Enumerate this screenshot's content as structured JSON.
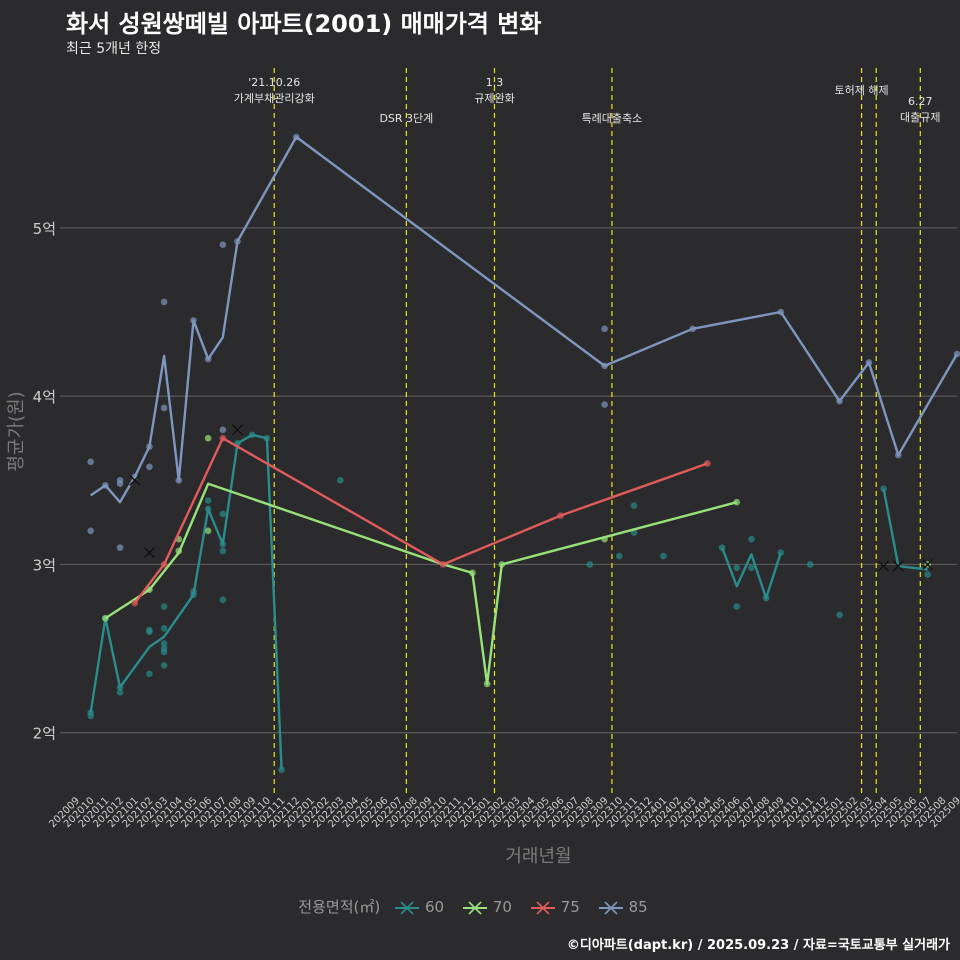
{
  "header": {
    "title": "화서 성원쌍떼빌 아파트(2001) 매매가격 변화",
    "subtitle": "최근 5개년 한정"
  },
  "caption": "©디아파트(dapt.kr) / 2025.09.23 / 자료=국토교통부 실거래가",
  "colors": {
    "background": "#2b2b2d",
    "grid": "#5a5a5a",
    "event_line": "#e8e81a",
    "s60": "#2a8c8c",
    "s70": "#99e27a",
    "s75": "#e05b5b",
    "s85": "#7f96be"
  },
  "chart_data": {
    "type": "line",
    "title": "화서 성원쌍떼빌 아파트(2001) 매매가격 변화",
    "xlabel": "거래년월",
    "ylabel": "평균가(원)",
    "ylim": [
      1.63,
      5.95
    ],
    "yticks": [
      {
        "value": 2,
        "label": "2억"
      },
      {
        "value": 3,
        "label": "3억"
      },
      {
        "value": 4,
        "label": "4억"
      },
      {
        "value": 5,
        "label": "5억"
      }
    ],
    "categories": [
      "202009",
      "202010",
      "202011",
      "202012",
      "202101",
      "202102",
      "202103",
      "202104",
      "202105",
      "202106",
      "202107",
      "202108",
      "202109",
      "202110",
      "202111",
      "202112",
      "202201",
      "202202",
      "202203",
      "202204",
      "202205",
      "202206",
      "202207",
      "202208",
      "202209",
      "202210",
      "202211",
      "202212",
      "202301",
      "202302",
      "202303",
      "202304",
      "202305",
      "202306",
      "202307",
      "202308",
      "202309",
      "202310",
      "202311",
      "202312",
      "202401",
      "202402",
      "202403",
      "202404",
      "202405",
      "202406",
      "202407",
      "202408",
      "202409",
      "202410",
      "202411",
      "202412",
      "202501",
      "202502",
      "202503",
      "202504",
      "202505",
      "202506",
      "202507",
      "202508",
      "202509"
    ],
    "legend_title": "전용면적(㎡)",
    "events": [
      {
        "idx": 13.5,
        "label": "'21.10.26\n가계부채관리강화",
        "row": 0
      },
      {
        "idx": 22.5,
        "label": "DSR 3단계",
        "row": 1
      },
      {
        "idx": 28.5,
        "label": "1.3\n규제완화",
        "row": 0
      },
      {
        "idx": 36.5,
        "label": "특례대출축소",
        "row": 1
      },
      {
        "idx": 53.5,
        "label": "토허제 해제",
        "row": 0
      },
      {
        "idx": 54.5,
        "label": "",
        "row": 0
      },
      {
        "idx": 57.5,
        "label": "6.27\n대출규제",
        "row": 2
      }
    ],
    "series": [
      {
        "name": "60",
        "color": "#2a8c8c",
        "line": [
          [
            1,
            2.12
          ],
          [
            2,
            2.68
          ],
          [
            3,
            2.27
          ],
          [
            5,
            2.51
          ],
          [
            6,
            2.57
          ],
          [
            8,
            2.82
          ],
          [
            9,
            3.33
          ],
          [
            10,
            3.12
          ],
          [
            11,
            3.72
          ],
          [
            12,
            3.77
          ],
          [
            13,
            3.75
          ],
          [
            14,
            1.78
          ],
          [
            null,
            null
          ],
          [
            55,
            3.45
          ],
          [
            56,
            2.99
          ],
          [
            58,
            2.97
          ],
          [
            null,
            null
          ],
          [
            44,
            3.1
          ],
          [
            45,
            2.87
          ],
          [
            46,
            3.06
          ],
          [
            47,
            2.8
          ],
          [
            48,
            3.07
          ]
        ],
        "points": [
          [
            1,
            2.1
          ],
          [
            1,
            2.12
          ],
          [
            2,
            2.68
          ],
          [
            3,
            2.24
          ],
          [
            3,
            2.27
          ],
          [
            5,
            2.35
          ],
          [
            5,
            2.6
          ],
          [
            5,
            2.61
          ],
          [
            6,
            2.48
          ],
          [
            6,
            2.5
          ],
          [
            6,
            2.53
          ],
          [
            6,
            2.4
          ],
          [
            6,
            2.62
          ],
          [
            6,
            2.75
          ],
          [
            8,
            2.82
          ],
          [
            8,
            2.84
          ],
          [
            9,
            3.38
          ],
          [
            9,
            3.33
          ],
          [
            10,
            2.79
          ],
          [
            10,
            3.08
          ],
          [
            10,
            3.12
          ],
          [
            10,
            3.3
          ],
          [
            11,
            3.72
          ],
          [
            12,
            3.77
          ],
          [
            13,
            3.75
          ],
          [
            14,
            1.78
          ],
          [
            18,
            3.5
          ],
          [
            35,
            3.0
          ],
          [
            37,
            3.05
          ],
          [
            38,
            3.35
          ],
          [
            38,
            3.19
          ],
          [
            40,
            3.05
          ],
          [
            44,
            3.1
          ],
          [
            45,
            2.75
          ],
          [
            45,
            2.98
          ],
          [
            46,
            3.15
          ],
          [
            46,
            2.98
          ],
          [
            47,
            2.8
          ],
          [
            48,
            3.07
          ],
          [
            50,
            3.0
          ],
          [
            52,
            2.7
          ],
          [
            55,
            3.45
          ],
          [
            58,
            2.94
          ]
        ],
        "x_marks": [
          [
            11,
            3.8
          ],
          [
            56,
            2.99
          ]
        ]
      },
      {
        "name": "70",
        "color": "#99e27a",
        "line": [
          [
            2,
            2.68
          ],
          [
            5,
            2.85
          ],
          [
            7,
            3.07
          ],
          [
            9,
            3.48
          ],
          [
            25,
            3.0
          ],
          [
            27,
            2.95
          ],
          [
            28,
            2.29
          ],
          [
            29,
            3.0
          ],
          [
            45,
            3.37
          ]
        ],
        "points": [
          [
            2,
            2.68
          ],
          [
            5,
            2.85
          ],
          [
            7,
            3.08
          ],
          [
            7,
            3.15
          ],
          [
            9,
            3.75
          ],
          [
            9,
            3.2
          ],
          [
            27,
            2.95
          ],
          [
            28,
            2.29
          ],
          [
            29,
            3.0
          ],
          [
            36,
            3.15
          ],
          [
            45,
            3.37
          ],
          [
            58,
            3.0
          ]
        ],
        "x_marks": [
          [
            5,
            3.07
          ],
          [
            58,
            3.0
          ]
        ]
      },
      {
        "name": "75",
        "color": "#e05b5b",
        "line": [
          [
            4,
            2.77
          ],
          [
            6,
            3.0
          ],
          [
            10,
            3.75
          ],
          [
            25,
            3.0
          ],
          [
            33,
            3.29
          ],
          [
            43,
            3.6
          ]
        ],
        "points": [
          [
            4,
            2.77
          ],
          [
            6,
            3.0
          ],
          [
            10,
            3.75
          ],
          [
            25,
            3.0
          ],
          [
            33,
            3.29
          ],
          [
            43,
            3.6
          ]
        ],
        "x_marks": []
      },
      {
        "name": "85",
        "color": "#7f96be",
        "line": [
          [
            1,
            3.41
          ],
          [
            2,
            3.47
          ],
          [
            3,
            3.37
          ],
          [
            4,
            3.52
          ],
          [
            5,
            3.7
          ],
          [
            6,
            4.24
          ],
          [
            7,
            3.5
          ],
          [
            8,
            4.45
          ],
          [
            9,
            4.22
          ],
          [
            10,
            4.35
          ],
          [
            11,
            4.92
          ],
          [
            15,
            5.54
          ],
          [
            36,
            4.18
          ],
          [
            42,
            4.4
          ],
          [
            48,
            4.5
          ],
          [
            52,
            3.97
          ],
          [
            54,
            4.2
          ],
          [
            56,
            3.65
          ],
          [
            60,
            4.25
          ]
        ],
        "points": [
          [
            1,
            3.61
          ],
          [
            1,
            3.2
          ],
          [
            2,
            3.47
          ],
          [
            3,
            3.48
          ],
          [
            3,
            3.5
          ],
          [
            3,
            3.1
          ],
          [
            4,
            3.52
          ],
          [
            5,
            3.58
          ],
          [
            5,
            3.7
          ],
          [
            6,
            4.56
          ],
          [
            6,
            3.93
          ],
          [
            7,
            3.5
          ],
          [
            8,
            4.45
          ],
          [
            9,
            4.22
          ],
          [
            10,
            4.9
          ],
          [
            10,
            3.8
          ],
          [
            11,
            4.92
          ],
          [
            15,
            5.54
          ],
          [
            36,
            4.4
          ],
          [
            36,
            3.95
          ],
          [
            36,
            4.18
          ],
          [
            42,
            4.4
          ],
          [
            48,
            4.5
          ],
          [
            52,
            3.97
          ],
          [
            54,
            4.2
          ],
          [
            56,
            3.65
          ],
          [
            60,
            4.25
          ]
        ],
        "x_marks": [
          [
            4,
            3.5
          ],
          [
            55,
            2.99
          ]
        ]
      }
    ]
  }
}
